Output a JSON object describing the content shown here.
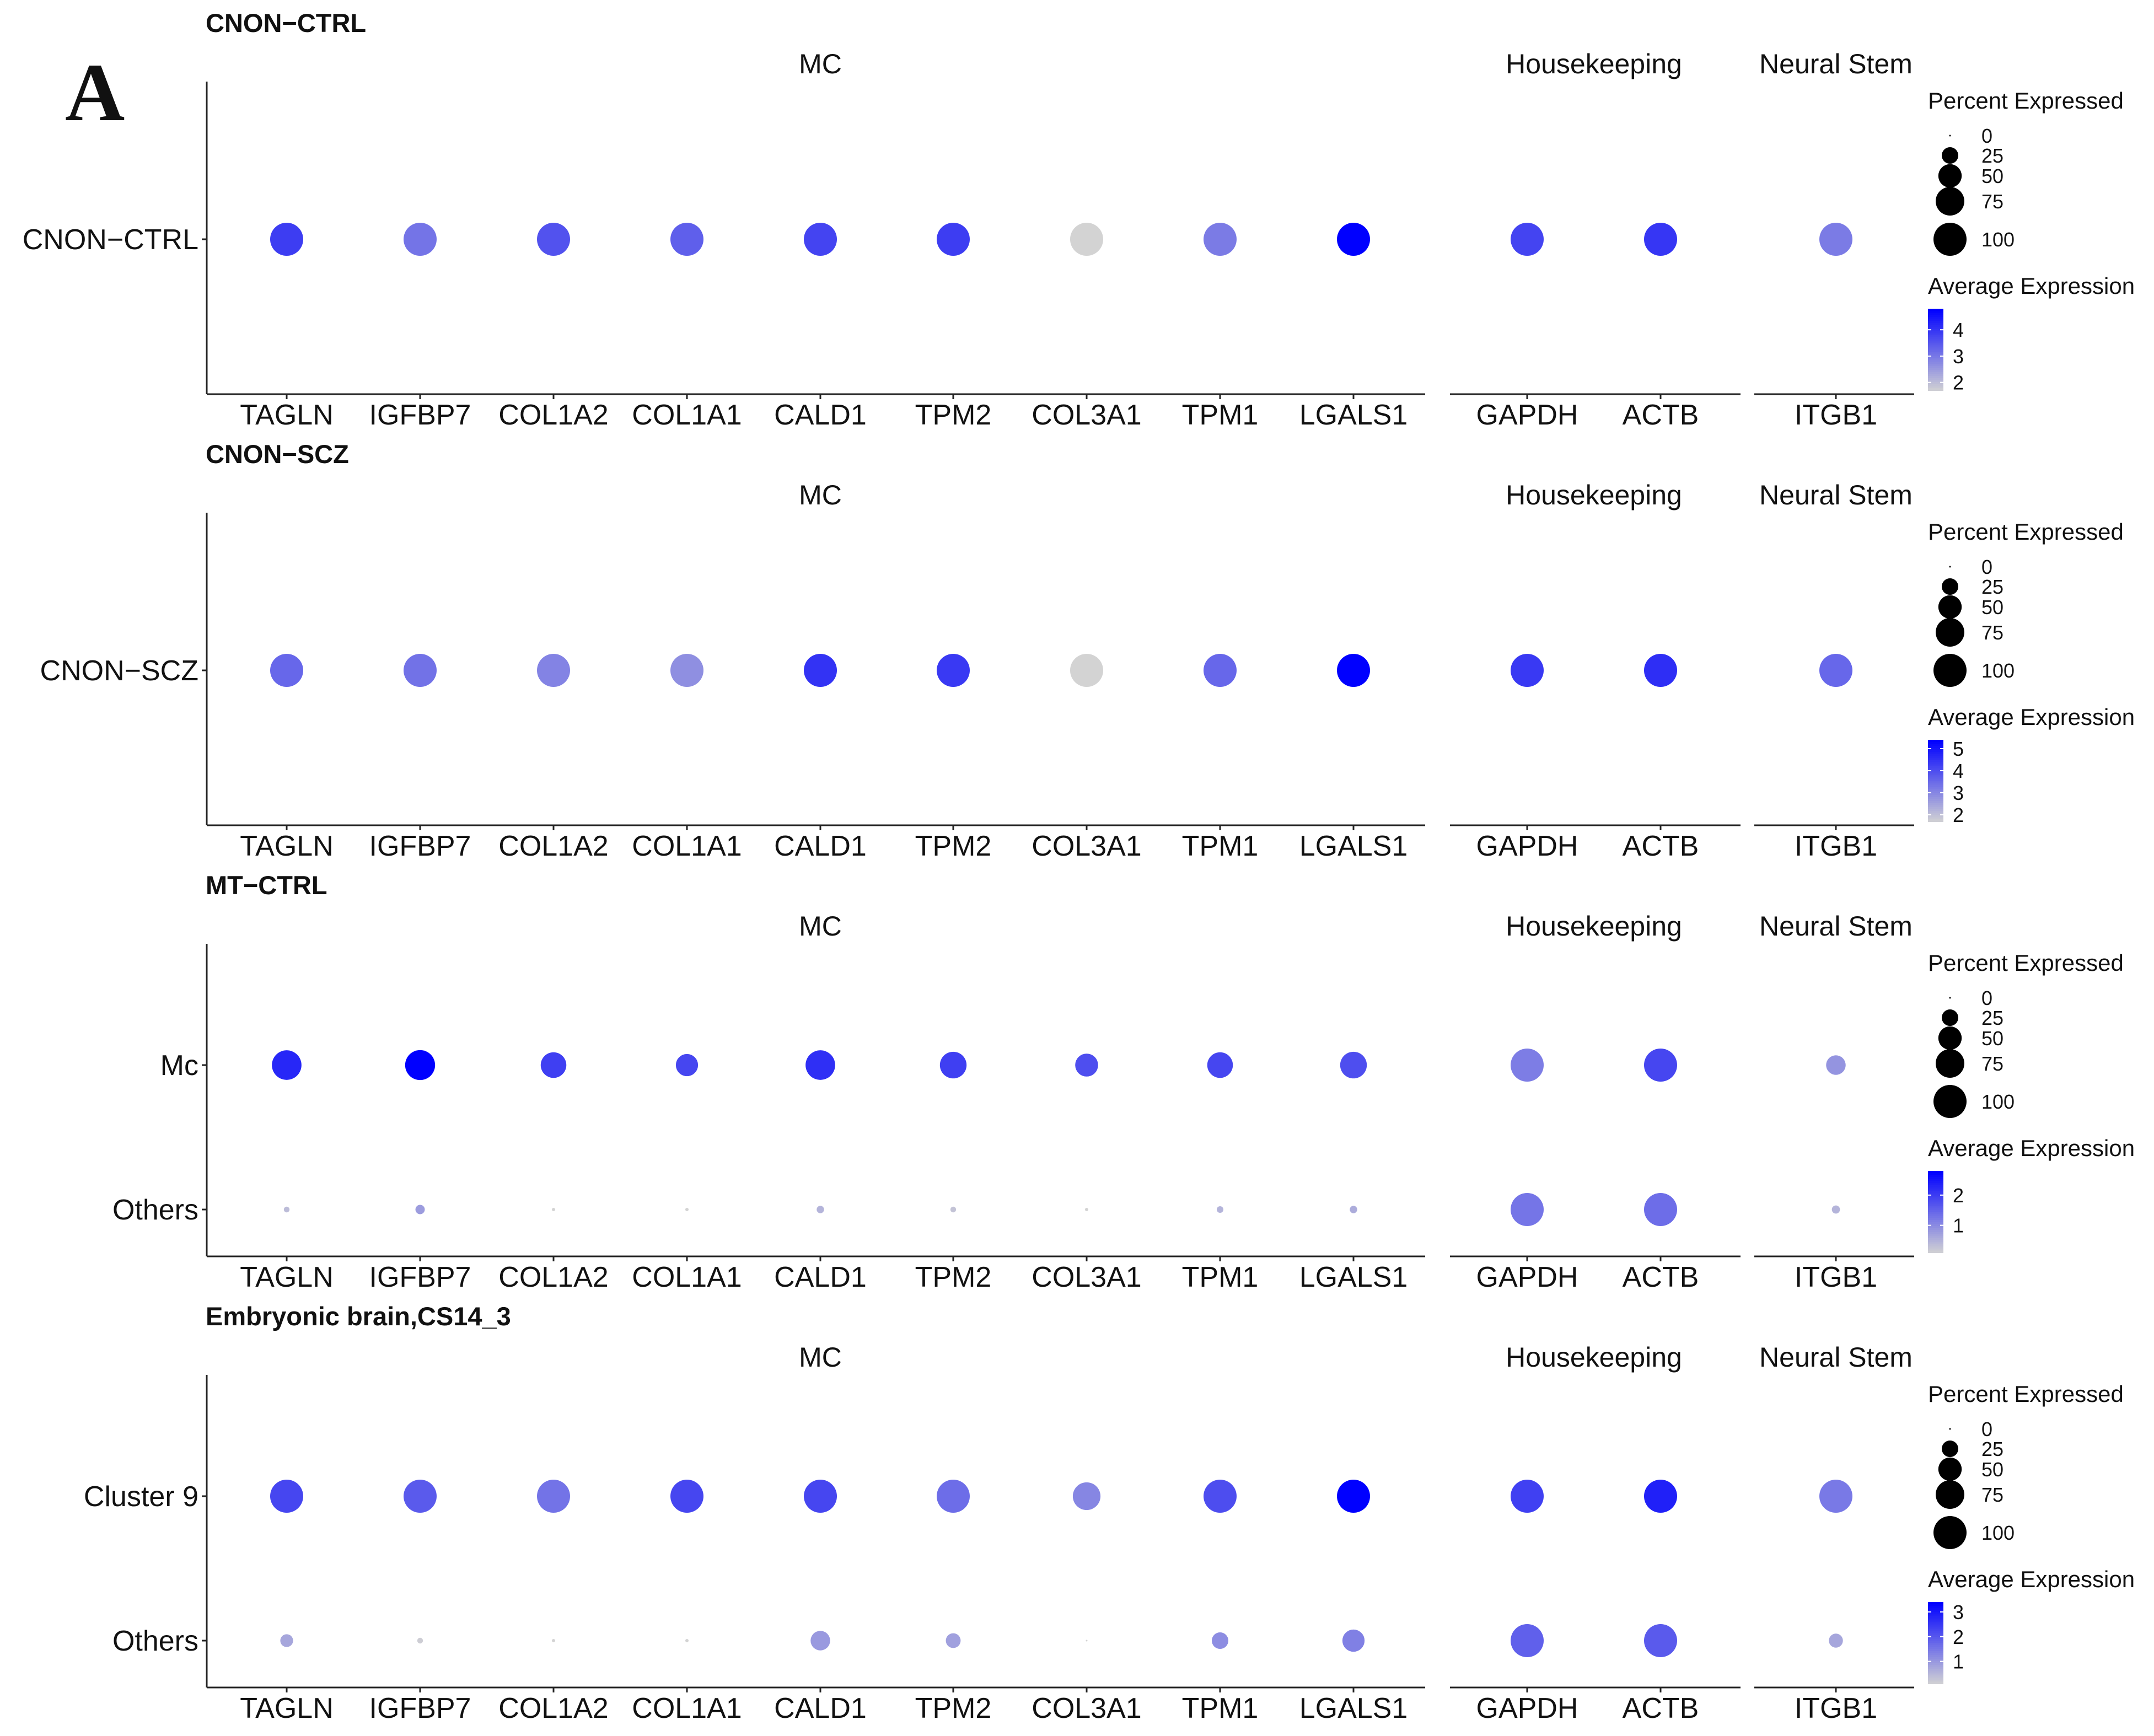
{
  "figure": {
    "panel_letter": "A"
  },
  "chart_data": [
    {
      "type": "dotplot",
      "title": "CNON−CTRL",
      "facets": [
        "MC",
        "Housekeeping",
        "Neural Stem"
      ],
      "genes": [
        {
          "name": "TAGLN",
          "facet": "MC"
        },
        {
          "name": "IGFBP7",
          "facet": "MC"
        },
        {
          "name": "COL1A2",
          "facet": "MC"
        },
        {
          "name": "COL1A1",
          "facet": "MC"
        },
        {
          "name": "CALD1",
          "facet": "MC"
        },
        {
          "name": "TPM2",
          "facet": "MC"
        },
        {
          "name": "COL3A1",
          "facet": "MC"
        },
        {
          "name": "TPM1",
          "facet": "MC"
        },
        {
          "name": "LGALS1",
          "facet": "MC"
        },
        {
          "name": "GAPDH",
          "facet": "Housekeeping"
        },
        {
          "name": "ACTB",
          "facet": "Housekeeping"
        },
        {
          "name": "ITGB1",
          "facet": "Neural Stem"
        }
      ],
      "groups": [
        "CNON−CTRL"
      ],
      "percent_expressed": [
        [
          100,
          100,
          100,
          100,
          100,
          100,
          100,
          100,
          100,
          100,
          100,
          100
        ]
      ],
      "average_expression": [
        [
          3.9,
          3.1,
          3.6,
          3.4,
          3.8,
          3.9,
          1.7,
          3.0,
          4.8,
          3.8,
          4.0,
          3.0
        ]
      ],
      "legend": {
        "size_title": "Percent Expressed",
        "size_breaks": [
          0,
          25,
          50,
          75,
          100
        ],
        "color_title": "Average Expression",
        "color_breaks": [
          4,
          3,
          2
        ],
        "color_range": [
          1.7,
          4.8
        ],
        "color_low": "#d3d3d3",
        "color_high": "#0000ff"
      }
    },
    {
      "type": "dotplot",
      "title": "CNON−SCZ",
      "facets": [
        "MC",
        "Housekeeping",
        "Neural Stem"
      ],
      "genes": [
        {
          "name": "TAGLN",
          "facet": "MC"
        },
        {
          "name": "IGFBP7",
          "facet": "MC"
        },
        {
          "name": "COL1A2",
          "facet": "MC"
        },
        {
          "name": "COL1A1",
          "facet": "MC"
        },
        {
          "name": "CALD1",
          "facet": "MC"
        },
        {
          "name": "TPM2",
          "facet": "MC"
        },
        {
          "name": "COL3A1",
          "facet": "MC"
        },
        {
          "name": "TPM1",
          "facet": "MC"
        },
        {
          "name": "LGALS1",
          "facet": "MC"
        },
        {
          "name": "GAPDH",
          "facet": "Housekeeping"
        },
        {
          "name": "ACTB",
          "facet": "Housekeeping"
        },
        {
          "name": "ITGB1",
          "facet": "Neural Stem"
        }
      ],
      "groups": [
        "CNON−SCZ"
      ],
      "percent_expressed": [
        [
          100,
          100,
          100,
          100,
          100,
          100,
          100,
          100,
          100,
          100,
          100,
          100
        ]
      ],
      "average_expression": [
        [
          3.6,
          3.4,
          3.1,
          2.9,
          4.5,
          4.4,
          1.7,
          3.6,
          5.4,
          4.4,
          4.6,
          3.6
        ]
      ],
      "legend": {
        "size_title": "Percent Expressed",
        "size_breaks": [
          0,
          25,
          50,
          75,
          100
        ],
        "color_title": "Average Expression",
        "color_breaks": [
          5,
          4,
          3,
          2
        ],
        "color_range": [
          1.7,
          5.4
        ],
        "color_low": "#d3d3d3",
        "color_high": "#0000ff"
      }
    },
    {
      "type": "dotplot",
      "title": "MT−CTRL",
      "facets": [
        "MC",
        "Housekeeping",
        "Neural Stem"
      ],
      "genes": [
        {
          "name": "TAGLN",
          "facet": "MC"
        },
        {
          "name": "IGFBP7",
          "facet": "MC"
        },
        {
          "name": "COL1A2",
          "facet": "MC"
        },
        {
          "name": "COL1A1",
          "facet": "MC"
        },
        {
          "name": "CALD1",
          "facet": "MC"
        },
        {
          "name": "TPM2",
          "facet": "MC"
        },
        {
          "name": "COL3A1",
          "facet": "MC"
        },
        {
          "name": "TPM1",
          "facet": "MC"
        },
        {
          "name": "LGALS1",
          "facet": "MC"
        },
        {
          "name": "GAPDH",
          "facet": "Housekeeping"
        },
        {
          "name": "ACTB",
          "facet": "Housekeeping"
        },
        {
          "name": "ITGB1",
          "facet": "Neural Stem"
        }
      ],
      "groups": [
        "Mc",
        "Others"
      ],
      "percent_expressed": [
        [
          80,
          82,
          60,
          45,
          80,
          65,
          48,
          60,
          65,
          100,
          100,
          35
        ],
        [
          3,
          8,
          1,
          1,
          5,
          3,
          1,
          4,
          5,
          100,
          100,
          6
        ]
      ],
      "average_expression": [
        [
          2.3,
          2.8,
          2.0,
          1.9,
          2.2,
          2.0,
          1.8,
          1.9,
          1.8,
          1.2,
          1.9,
          0.9
        ],
        [
          0.4,
          0.8,
          0.1,
          0.1,
          0.5,
          0.3,
          0.1,
          0.5,
          0.6,
          1.3,
          1.4,
          0.5
        ]
      ],
      "legend": {
        "size_title": "Percent Expressed",
        "size_breaks": [
          0,
          25,
          50,
          75,
          100
        ],
        "color_title": "Average Expression",
        "color_breaks": [
          2,
          1
        ],
        "color_range": [
          0.1,
          2.8
        ],
        "color_low": "#d3d3d3",
        "color_high": "#0000ff"
      }
    },
    {
      "type": "dotplot",
      "title": "Embryonic brain,CS14_3",
      "facets": [
        "MC",
        "Housekeeping",
        "Neural Stem"
      ],
      "genes": [
        {
          "name": "TAGLN",
          "facet": "MC"
        },
        {
          "name": "IGFBP7",
          "facet": "MC"
        },
        {
          "name": "COL1A2",
          "facet": "MC"
        },
        {
          "name": "COL1A1",
          "facet": "MC"
        },
        {
          "name": "CALD1",
          "facet": "MC"
        },
        {
          "name": "TPM2",
          "facet": "MC"
        },
        {
          "name": "COL3A1",
          "facet": "MC"
        },
        {
          "name": "TPM1",
          "facet": "MC"
        },
        {
          "name": "LGALS1",
          "facet": "MC"
        },
        {
          "name": "GAPDH",
          "facet": "Housekeeping"
        },
        {
          "name": "ACTB",
          "facet": "Housekeeping"
        },
        {
          "name": "ITGB1",
          "facet": "Neural Stem"
        }
      ],
      "groups": [
        "Cluster 9",
        "Others"
      ],
      "percent_expressed": [
        [
          100,
          100,
          100,
          100,
          100,
          100,
          70,
          100,
          100,
          100,
          100,
          100
        ],
        [
          15,
          3,
          1,
          1,
          35,
          20,
          0,
          25,
          45,
          100,
          100,
          18
        ]
      ],
      "average_expression": [
        [
          2.3,
          2.0,
          1.6,
          2.3,
          2.3,
          1.7,
          1.3,
          2.2,
          3.4,
          2.4,
          2.9,
          1.5
        ],
        [
          0.8,
          0.2,
          0.1,
          0.1,
          1.0,
          0.9,
          0.1,
          1.2,
          1.4,
          1.9,
          2.0,
          0.8
        ]
      ],
      "legend": {
        "size_title": "Percent Expressed",
        "size_breaks": [
          0,
          25,
          50,
          75,
          100
        ],
        "color_title": "Average Expression",
        "color_breaks": [
          3,
          2,
          1
        ],
        "color_range": [
          0.1,
          3.4
        ],
        "color_low": "#d3d3d3",
        "color_high": "#0000ff"
      }
    }
  ]
}
